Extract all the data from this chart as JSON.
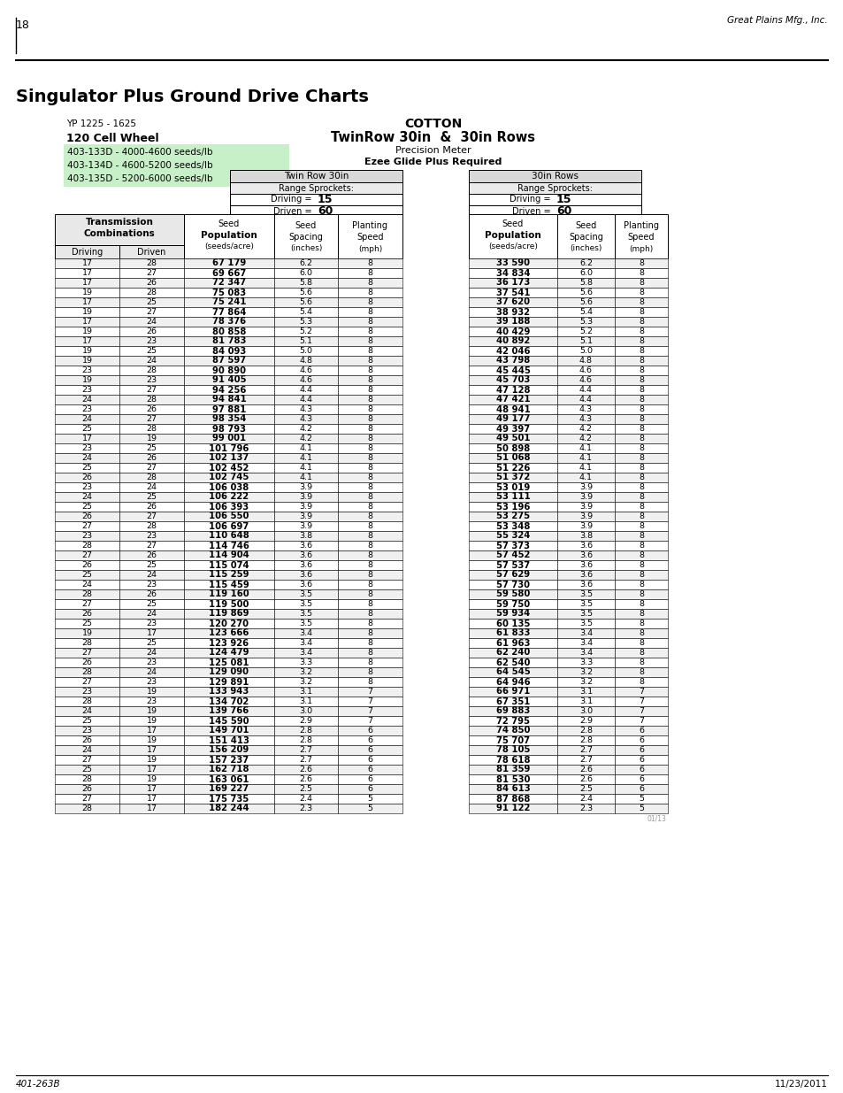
{
  "page_number": "18",
  "company": "Great Plains Mfg., Inc.",
  "title": "Singulator Plus Ground Drive Charts",
  "model": "YP 1225 - 1625",
  "cell_wheel": "120 Cell Wheel",
  "crop": "COTTON",
  "row_config": "TwinRow 30in  &  30in Rows",
  "meter": "Precision Meter",
  "req": "Ezee Glide Plus Required",
  "part_numbers": [
    "403-133D - 4000-4600 seeds/lb",
    "403-134D - 4600-5200 seeds/lb",
    "403-135D - 5200-6000 seeds/lb"
  ],
  "twin_row_driving": "15",
  "twin_row_driven": "60",
  "rows_30in_driving": "15",
  "rows_30in_driven": "60",
  "footer_left": "401-263B",
  "footer_right": "11/23/2011",
  "twin_row_data": [
    [
      17,
      28,
      "67 179",
      6.2,
      8
    ],
    [
      17,
      27,
      "69 667",
      6.0,
      8
    ],
    [
      17,
      26,
      "72 347",
      5.8,
      8
    ],
    [
      19,
      28,
      "75 083",
      5.6,
      8
    ],
    [
      17,
      25,
      "75 241",
      5.6,
      8
    ],
    [
      19,
      27,
      "77 864",
      5.4,
      8
    ],
    [
      17,
      24,
      "78 376",
      5.3,
      8
    ],
    [
      19,
      26,
      "80 858",
      5.2,
      8
    ],
    [
      17,
      23,
      "81 783",
      5.1,
      8
    ],
    [
      19,
      25,
      "84 093",
      5.0,
      8
    ],
    [
      19,
      24,
      "87 597",
      4.8,
      8
    ],
    [
      23,
      28,
      "90 890",
      4.6,
      8
    ],
    [
      19,
      23,
      "91 405",
      4.6,
      8
    ],
    [
      23,
      27,
      "94 256",
      4.4,
      8
    ],
    [
      24,
      28,
      "94 841",
      4.4,
      8
    ],
    [
      23,
      26,
      "97 881",
      4.3,
      8
    ],
    [
      24,
      27,
      "98 354",
      4.3,
      8
    ],
    [
      25,
      28,
      "98 793",
      4.2,
      8
    ],
    [
      17,
      19,
      "99 001",
      4.2,
      8
    ],
    [
      23,
      25,
      "101 796",
      4.1,
      8
    ],
    [
      24,
      26,
      "102 137",
      4.1,
      8
    ],
    [
      25,
      27,
      "102 452",
      4.1,
      8
    ],
    [
      26,
      28,
      "102 745",
      4.1,
      8
    ],
    [
      23,
      24,
      "106 038",
      3.9,
      8
    ],
    [
      24,
      25,
      "106 222",
      3.9,
      8
    ],
    [
      25,
      26,
      "106 393",
      3.9,
      8
    ],
    [
      26,
      27,
      "106 550",
      3.9,
      8
    ],
    [
      27,
      28,
      "106 697",
      3.9,
      8
    ],
    [
      23,
      23,
      "110 648",
      3.8,
      8
    ],
    [
      28,
      27,
      "114 746",
      3.6,
      8
    ],
    [
      27,
      26,
      "114 904",
      3.6,
      8
    ],
    [
      26,
      25,
      "115 074",
      3.6,
      8
    ],
    [
      25,
      24,
      "115 259",
      3.6,
      8
    ],
    [
      24,
      23,
      "115 459",
      3.6,
      8
    ],
    [
      28,
      26,
      "119 160",
      3.5,
      8
    ],
    [
      27,
      25,
      "119 500",
      3.5,
      8
    ],
    [
      26,
      24,
      "119 869",
      3.5,
      8
    ],
    [
      25,
      23,
      "120 270",
      3.5,
      8
    ],
    [
      19,
      17,
      "123 666",
      3.4,
      8
    ],
    [
      28,
      25,
      "123 926",
      3.4,
      8
    ],
    [
      27,
      24,
      "124 479",
      3.4,
      8
    ],
    [
      26,
      23,
      "125 081",
      3.3,
      8
    ],
    [
      28,
      24,
      "129 090",
      3.2,
      8
    ],
    [
      27,
      23,
      "129 891",
      3.2,
      8
    ],
    [
      23,
      19,
      "133 943",
      3.1,
      7
    ],
    [
      28,
      23,
      "134 702",
      3.1,
      7
    ],
    [
      24,
      19,
      "139 766",
      3.0,
      7
    ],
    [
      25,
      19,
      "145 590",
      2.9,
      7
    ],
    [
      23,
      17,
      "149 701",
      2.8,
      6
    ],
    [
      26,
      19,
      "151 413",
      2.8,
      6
    ],
    [
      24,
      17,
      "156 209",
      2.7,
      6
    ],
    [
      27,
      19,
      "157 237",
      2.7,
      6
    ],
    [
      25,
      17,
      "162 718",
      2.6,
      6
    ],
    [
      28,
      19,
      "163 061",
      2.6,
      6
    ],
    [
      26,
      17,
      "169 227",
      2.5,
      6
    ],
    [
      27,
      17,
      "175 735",
      2.4,
      5
    ],
    [
      28,
      17,
      "182 244",
      2.3,
      5
    ]
  ],
  "rows_30in_data": [
    [
      "33 590",
      6.2,
      8
    ],
    [
      "34 834",
      6.0,
      8
    ],
    [
      "36 173",
      5.8,
      8
    ],
    [
      "37 541",
      5.6,
      8
    ],
    [
      "37 620",
      5.6,
      8
    ],
    [
      "38 932",
      5.4,
      8
    ],
    [
      "39 188",
      5.3,
      8
    ],
    [
      "40 429",
      5.2,
      8
    ],
    [
      "40 892",
      5.1,
      8
    ],
    [
      "42 046",
      5.0,
      8
    ],
    [
      "43 798",
      4.8,
      8
    ],
    [
      "45 445",
      4.6,
      8
    ],
    [
      "45 703",
      4.6,
      8
    ],
    [
      "47 128",
      4.4,
      8
    ],
    [
      "47 421",
      4.4,
      8
    ],
    [
      "48 941",
      4.3,
      8
    ],
    [
      "49 177",
      4.3,
      8
    ],
    [
      "49 397",
      4.2,
      8
    ],
    [
      "49 501",
      4.2,
      8
    ],
    [
      "50 898",
      4.1,
      8
    ],
    [
      "51 068",
      4.1,
      8
    ],
    [
      "51 226",
      4.1,
      8
    ],
    [
      "51 372",
      4.1,
      8
    ],
    [
      "53 019",
      3.9,
      8
    ],
    [
      "53 111",
      3.9,
      8
    ],
    [
      "53 196",
      3.9,
      8
    ],
    [
      "53 275",
      3.9,
      8
    ],
    [
      "53 348",
      3.9,
      8
    ],
    [
      "55 324",
      3.8,
      8
    ],
    [
      "57 373",
      3.6,
      8
    ],
    [
      "57 452",
      3.6,
      8
    ],
    [
      "57 537",
      3.6,
      8
    ],
    [
      "57 629",
      3.6,
      8
    ],
    [
      "57 730",
      3.6,
      8
    ],
    [
      "59 580",
      3.5,
      8
    ],
    [
      "59 750",
      3.5,
      8
    ],
    [
      "59 934",
      3.5,
      8
    ],
    [
      "60 135",
      3.5,
      8
    ],
    [
      "61 833",
      3.4,
      8
    ],
    [
      "61 963",
      3.4,
      8
    ],
    [
      "62 240",
      3.4,
      8
    ],
    [
      "62 540",
      3.3,
      8
    ],
    [
      "64 545",
      3.2,
      8
    ],
    [
      "64 946",
      3.2,
      8
    ],
    [
      "66 971",
      3.1,
      7
    ],
    [
      "67 351",
      3.1,
      7
    ],
    [
      "69 883",
      3.0,
      7
    ],
    [
      "72 795",
      2.9,
      7
    ],
    [
      "74 850",
      2.8,
      6
    ],
    [
      "75 707",
      2.8,
      6
    ],
    [
      "78 105",
      2.7,
      6
    ],
    [
      "78 618",
      2.7,
      6
    ],
    [
      "81 359",
      2.6,
      6
    ],
    [
      "81 530",
      2.6,
      6
    ],
    [
      "84 613",
      2.5,
      6
    ],
    [
      "87 868",
      2.4,
      5
    ],
    [
      "91 122",
      2.3,
      5
    ]
  ]
}
